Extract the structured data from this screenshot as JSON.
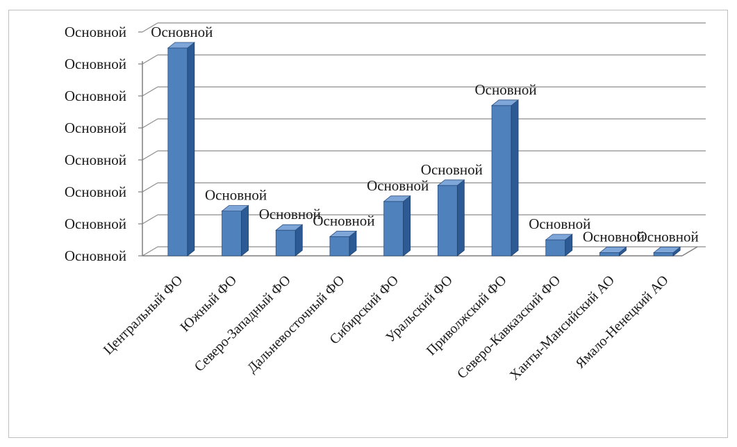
{
  "chart_data": {
    "type": "bar",
    "style": "3d-column",
    "categories": [
      "Центральный ФО",
      "Южный ФО",
      "Северо-Западный ФО",
      "Дальневосточный ФО",
      "Сибирский ФО",
      "Уральский ФО",
      "Приволжский ФО",
      "Северо-Кавказский ФО",
      "Ханты-Мансийский АО",
      "Ямало-Ненецкий АО"
    ],
    "values": [
      6.5,
      1.4,
      0.8,
      0.6,
      1.7,
      2.2,
      4.7,
      0.5,
      0.1,
      0.1
    ],
    "data_labels": [
      "Основной",
      "Основной",
      "Основной",
      "Основной",
      "Основной",
      "Основной",
      "Основной",
      "Основной",
      "Основной",
      "Основной"
    ],
    "y_tick_labels": [
      "Основной",
      "Основной",
      "Основной",
      "Основной",
      "Основной",
      "Основной",
      "Основной",
      "Основной"
    ],
    "ylim": [
      0,
      7
    ],
    "grid": true,
    "legend": "none",
    "colors": {
      "bar_front": "#4f81bd",
      "bar_side": "#2c5a94",
      "bar_top": "#7fa6d8",
      "grid": "#8c8c8c",
      "axis": "#7f7f7f"
    }
  }
}
